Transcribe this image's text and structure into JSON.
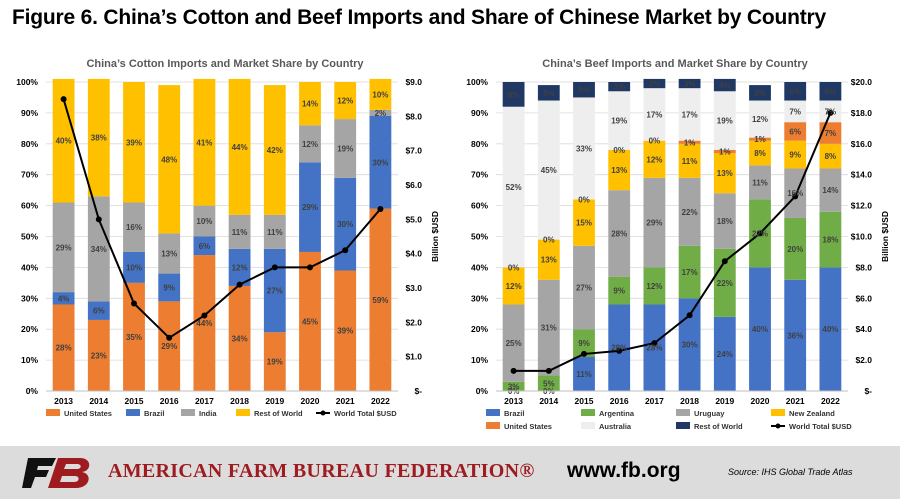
{
  "figure_title": "Figure 6. China’s Cotton and Beef Imports and Share of Chinese Market by Country",
  "footer": {
    "org_name": "AMERICAN FARM BUREAU FEDERATION®",
    "url": "www.fb.org",
    "source": "Source: IHS Global Trade Atlas",
    "logo_text": "FB"
  },
  "colors": {
    "united_states": "#ed7d31",
    "brazil": "#4472c4",
    "india": "#a5a5a5",
    "rest_of_world": "#ffc000",
    "argentina": "#70ad47",
    "uruguay": "#a5a5a5",
    "new_zealand": "#ffc000",
    "australia": "#eeeeee",
    "rest_of_world_beef": "#1f3864",
    "line": "#000000",
    "brand_red": "#9e1b20"
  },
  "chart_data": [
    {
      "id": "cotton",
      "type": "bar",
      "stacked": true,
      "title": "China’s Cotton Imports and Market Share by Country",
      "categories": [
        "2013",
        "2014",
        "2015",
        "2016",
        "2017",
        "2018",
        "2019",
        "2020",
        "2021",
        "2022"
      ],
      "y_left": {
        "min": 0,
        "max": 100,
        "ticks": [
          "0%",
          "10%",
          "20%",
          "30%",
          "40%",
          "50%",
          "60%",
          "70%",
          "80%",
          "90%",
          "100%"
        ]
      },
      "y_right": {
        "min": 0,
        "max": 9,
        "label": "Billion $USD",
        "ticks": [
          "$-",
          "$1.0",
          "$2.0",
          "$3.0",
          "$4.0",
          "$5.0",
          "$6.0",
          "$7.0",
          "$8.0",
          "$9.0"
        ]
      },
      "grid": true,
      "legend_position": "bottom",
      "series": [
        {
          "name": "United States",
          "color_key": "united_states",
          "values": [
            28,
            23,
            35,
            29,
            44,
            34,
            19,
            45,
            39,
            59
          ],
          "labels": [
            "28%",
            "23%",
            "35%",
            "29%",
            "44%",
            "34%",
            "19%",
            "45%",
            "39%",
            "59%"
          ]
        },
        {
          "name": "Brazil",
          "color_key": "brazil",
          "values": [
            4,
            6,
            10,
            9,
            6,
            12,
            27,
            29,
            30,
            30
          ],
          "labels": [
            "4%",
            "6%",
            "10%",
            "9%",
            "6%",
            "12%",
            "27%",
            "29%",
            "30%",
            "30%"
          ]
        },
        {
          "name": "India",
          "color_key": "india",
          "values": [
            29,
            34,
            16,
            13,
            10,
            11,
            11,
            12,
            19,
            2
          ],
          "labels": [
            "29%",
            "34%",
            "16%",
            "13%",
            "10%",
            "11%",
            "11%",
            "12%",
            "19%",
            "2%"
          ]
        },
        {
          "name": "Rest of World",
          "color_key": "rest_of_world",
          "values": [
            40,
            38,
            39,
            48,
            41,
            44,
            42,
            14,
            12,
            10
          ],
          "labels": [
            "40%",
            "38%",
            "39%",
            "48%",
            "41%",
            "44%",
            "42%",
            "14%",
            "12%",
            "10%"
          ]
        }
      ],
      "line": {
        "name": "World Total $USD",
        "values": [
          8.5,
          5.0,
          2.55,
          1.55,
          2.2,
          3.1,
          3.6,
          3.6,
          4.1,
          5.3
        ]
      }
    },
    {
      "id": "beef",
      "type": "bar",
      "stacked": true,
      "title": "China’s Beef Imports and Market Share by Country",
      "categories": [
        "2013",
        "2014",
        "2015",
        "2016",
        "2017",
        "2018",
        "2019",
        "2020",
        "2021",
        "2022"
      ],
      "y_left": {
        "min": 0,
        "max": 100,
        "ticks": [
          "0%",
          "10%",
          "20%",
          "30%",
          "40%",
          "50%",
          "60%",
          "70%",
          "80%",
          "90%",
          "100%"
        ]
      },
      "y_right": {
        "min": 0,
        "max": 20,
        "label": "Billion $USD",
        "ticks": [
          "$-",
          "$2.0",
          "$4.0",
          "$6.0",
          "$8.0",
          "$10.0",
          "$12.0",
          "$14.0",
          "$16.0",
          "$18.0",
          "$20.0"
        ]
      },
      "grid": true,
      "legend_position": "bottom",
      "series": [
        {
          "name": "Brazil",
          "color_key": "brazil",
          "values": [
            0,
            0,
            11,
            28,
            28,
            30,
            24,
            40,
            36,
            40
          ],
          "labels": [
            "0%",
            "0%",
            "11%",
            "28%",
            "28%",
            "30%",
            "24%",
            "40%",
            "36%",
            "40%"
          ]
        },
        {
          "name": "Argentina",
          "color_key": "argentina",
          "values": [
            3,
            5,
            9,
            9,
            12,
            17,
            22,
            22,
            20,
            18
          ],
          "labels": [
            "3%",
            "5%",
            "9%",
            "9%",
            "12%",
            "17%",
            "22%",
            "22%",
            "20%",
            "18%"
          ]
        },
        {
          "name": "Uruguay",
          "color_key": "uruguay",
          "values": [
            25,
            31,
            27,
            28,
            29,
            22,
            18,
            11,
            16,
            14
          ],
          "labels": [
            "25%",
            "31%",
            "27%",
            "28%",
            "29%",
            "22%",
            "18%",
            "11%",
            "16%",
            "14%"
          ]
        },
        {
          "name": "New Zealand",
          "color_key": "new_zealand",
          "values": [
            12,
            13,
            15,
            13,
            12,
            11,
            13,
            8,
            9,
            8
          ],
          "labels": [
            "12%",
            "13%",
            "15%",
            "13%",
            "12%",
            "11%",
            "13%",
            "8%",
            "9%",
            "8%"
          ]
        },
        {
          "name": "United States",
          "color_key": "united_states",
          "values": [
            0,
            0,
            0,
            0,
            0,
            1,
            1,
            1,
            6,
            7
          ],
          "labels": [
            "0%",
            "0%",
            "0%",
            "0%",
            "0%",
            "1%",
            "1%",
            "1%",
            "6%",
            "7%"
          ]
        },
        {
          "name": "Australia",
          "color_key": "australia",
          "values": [
            52,
            45,
            33,
            19,
            17,
            17,
            19,
            12,
            7,
            7
          ],
          "labels": [
            "52%",
            "45%",
            "33%",
            "19%",
            "17%",
            "17%",
            "19%",
            "12%",
            "7%",
            "7%"
          ]
        },
        {
          "name": "Rest of World",
          "color_key": "rest_of_world_beef",
          "values": [
            8,
            5,
            5,
            3,
            3,
            3,
            4,
            5,
            6,
            6
          ],
          "labels": [
            "8%",
            "5%",
            "5%",
            "3%",
            "3%",
            "3%",
            "4%",
            "5%",
            "6%",
            "6%"
          ]
        }
      ],
      "line": {
        "name": "World Total $USD",
        "values": [
          1.3,
          1.3,
          2.4,
          2.6,
          3.1,
          4.9,
          8.4,
          10.2,
          12.6,
          18.0
        ]
      }
    }
  ]
}
